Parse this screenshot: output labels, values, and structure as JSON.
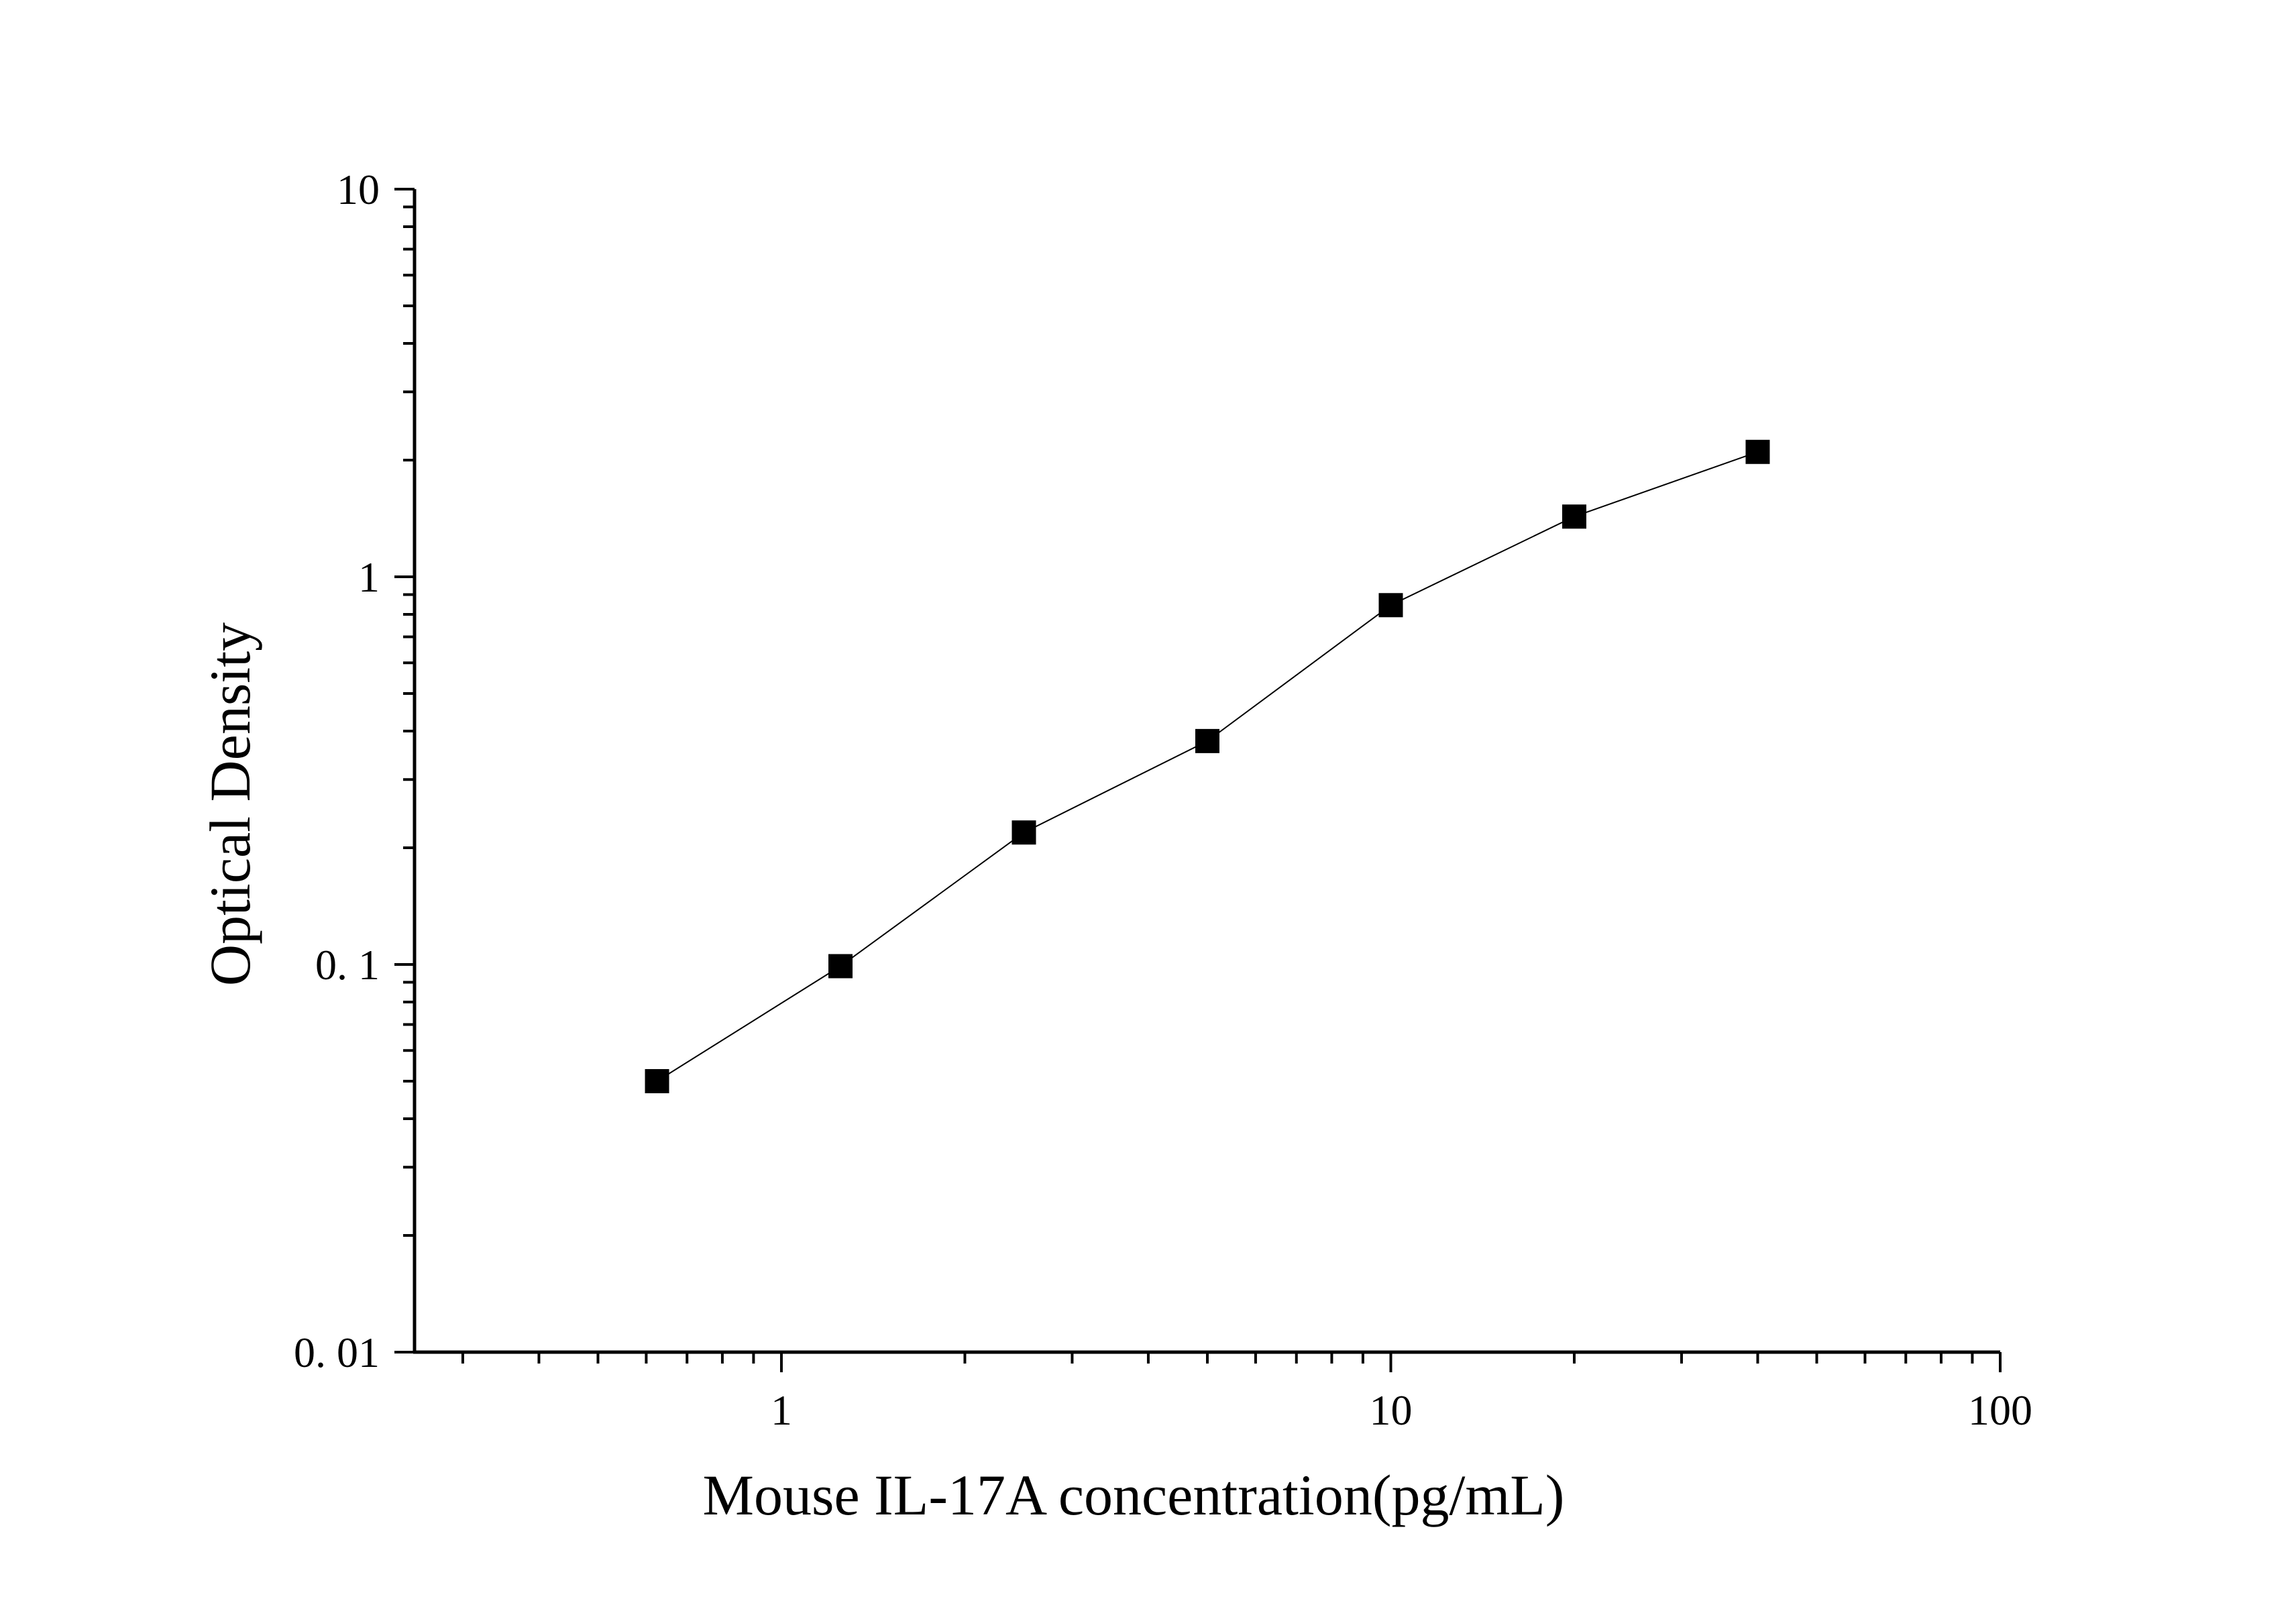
{
  "chart_data": {
    "type": "scatter",
    "title": "",
    "xlabel": "Mouse IL-17A concentration(pg/mL)",
    "ylabel": "Optical Density",
    "x_scale": "log",
    "y_scale": "log",
    "xlim": [
      0.25,
      100
    ],
    "ylim": [
      0.01,
      10
    ],
    "x_tick_labels": [
      "1",
      "10",
      "100"
    ],
    "y_tick_labels": [
      "0. 01",
      "0. 1",
      "1",
      "10"
    ],
    "grid": false,
    "legend": "none",
    "marker": "square",
    "colors": {
      "marker": "#000000",
      "line": "#000000",
      "axis": "#000000"
    },
    "series": [
      {
        "x": [
          0.625,
          1.25,
          2.5,
          5,
          10,
          20,
          40
        ],
        "y": [
          0.05,
          0.099,
          0.219,
          0.377,
          0.845,
          1.43,
          2.1
        ],
        "fit_line": true
      }
    ]
  }
}
